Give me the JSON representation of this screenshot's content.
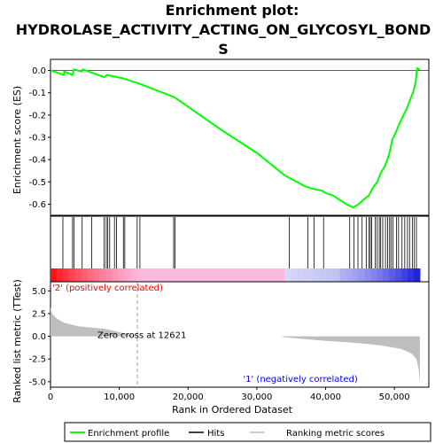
{
  "chart_data": {
    "type": "line",
    "title_lines": [
      "Enrichment plot:",
      "HYDROLASE_ACTIVITY_ACTING_ON_GLYCOSYL_BOND",
      "S"
    ],
    "xlabel": "Rank in Ordered Dataset",
    "ylabel_top": "Enrichment score (ES)",
    "ylabel_bottom": "Ranked list metric (TTest)",
    "xlim": [
      0,
      55000
    ],
    "x_ticks": [
      0,
      10000,
      20000,
      30000,
      40000,
      50000
    ],
    "x_tick_labels": [
      "0",
      "10,000",
      "20,000",
      "30,000",
      "40,000",
      "50,000"
    ],
    "es_ylim": [
      -0.65,
      0.05
    ],
    "es_ticks": [
      0.0,
      -0.1,
      -0.2,
      -0.3,
      -0.4,
      -0.5,
      -0.6
    ],
    "es_tick_labels": [
      "0.0",
      "-0.1",
      "-0.2",
      "-0.3",
      "-0.4",
      "-0.5",
      "-0.6"
    ],
    "metric_ylim": [
      -5.6,
      6.0
    ],
    "metric_ticks": [
      5.0,
      2.5,
      0.0,
      -2.5,
      -5.0
    ],
    "metric_tick_labels": [
      "5.0",
      "2.5",
      "0.0",
      "-2.5",
      "-5.0"
    ],
    "enrichment_profile": {
      "name": "Enrichment profile",
      "color": "#00ff00",
      "points": [
        [
          0,
          0.0
        ],
        [
          1000,
          -0.01
        ],
        [
          1900,
          -0.02
        ],
        [
          2000,
          -0.005
        ],
        [
          3200,
          -0.02
        ],
        [
          3400,
          0.005
        ],
        [
          4500,
          -0.005
        ],
        [
          4700,
          0.005
        ],
        [
          6000,
          -0.01
        ],
        [
          7800,
          -0.03
        ],
        [
          8200,
          -0.02
        ],
        [
          9000,
          -0.025
        ],
        [
          10500,
          -0.035
        ],
        [
          11000,
          -0.04
        ],
        [
          13000,
          -0.06
        ],
        [
          18000,
          -0.12
        ],
        [
          25000,
          -0.27
        ],
        [
          30000,
          -0.37
        ],
        [
          34000,
          -0.47
        ],
        [
          37000,
          -0.52
        ],
        [
          38000,
          -0.53
        ],
        [
          39500,
          -0.54
        ],
        [
          40000,
          -0.55
        ],
        [
          41000,
          -0.56
        ],
        [
          43000,
          -0.6
        ],
        [
          44000,
          -0.615
        ],
        [
          44800,
          -0.6
        ],
        [
          45500,
          -0.58
        ],
        [
          46300,
          -0.56
        ],
        [
          46800,
          -0.53
        ],
        [
          47500,
          -0.5
        ],
        [
          48000,
          -0.46
        ],
        [
          48600,
          -0.43
        ],
        [
          49200,
          -0.38
        ],
        [
          49700,
          -0.31
        ],
        [
          50300,
          -0.27
        ],
        [
          50700,
          -0.24
        ],
        [
          51300,
          -0.2
        ],
        [
          51800,
          -0.17
        ],
        [
          52300,
          -0.13
        ],
        [
          52800,
          -0.09
        ],
        [
          53100,
          -0.05
        ],
        [
          53300,
          0.01
        ],
        [
          53700,
          0.003
        ]
      ]
    },
    "hits": [
      1800,
      3200,
      3400,
      4600,
      6000,
      7800,
      8100,
      8300,
      8600,
      9300,
      9600,
      10600,
      10800,
      12600,
      13000,
      17900,
      18100,
      34700,
      37400,
      38300,
      39700,
      43500,
      44100,
      44700,
      45300,
      45900,
      46300,
      46500,
      46700,
      47200,
      47500,
      47800,
      48000,
      48300,
      48700,
      49000,
      49300,
      49500,
      49800,
      50300,
      50600,
      51100,
      51500,
      51900,
      52200,
      52600,
      52900,
      53200
    ],
    "hits_label": "Hits",
    "metric_series": {
      "name": "Ranking metric scores",
      "color": "#bebebe",
      "points": [
        [
          0,
          3.2
        ],
        [
          200,
          2.5
        ],
        [
          1000,
          1.9
        ],
        [
          2000,
          1.5
        ],
        [
          4000,
          1.1
        ],
        [
          8000,
          0.8
        ],
        [
          12621,
          0.0
        ],
        [
          12622,
          0.0
        ],
        [
          33500,
          0.0
        ],
        [
          34000,
          -0.1
        ],
        [
          40000,
          -0.5
        ],
        [
          44000,
          -0.7
        ],
        [
          48000,
          -1.0
        ],
        [
          51000,
          -1.4
        ],
        [
          52500,
          -1.9
        ],
        [
          53200,
          -2.5
        ],
        [
          53500,
          -3.5
        ],
        [
          53700,
          -5.2
        ]
      ]
    },
    "zero_cross_label": "Zero cross at 12621",
    "zero_cross_x": 12621,
    "pos_label": "'2' (positively correlated)",
    "neg_label": "'1' (negatively correlated)",
    "legend_position": "bottom",
    "colors": {
      "pos": "#ff0000",
      "neg": "#0000ff",
      "profile": "#00ff00",
      "metric": "#bebebe"
    }
  }
}
